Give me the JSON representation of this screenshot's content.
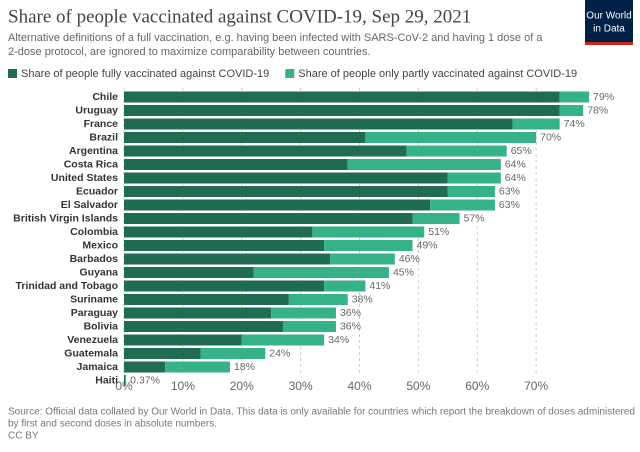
{
  "chart_data": {
    "type": "stacked-bar-horizontal",
    "title": "Share of people vaccinated against COVID-19, Sep 29, 2021",
    "subtitle": [
      "Alternative definitions of a full vaccination, e.g. having been infected with SARS-CoV-2 and having 1 dose of a",
      "2-dose protocol, are ignored to maximize comparability between countries."
    ],
    "logo": [
      "Our World",
      "in Data"
    ],
    "source": [
      "Source: Official data collated by Our World in Data. This data is only available for countries which report the breakdown of doses administered",
      "by first and second doses in absolute numbers.",
      "CC BY"
    ],
    "categories": [
      "Chile",
      "Uruguay",
      "France",
      "Brazil",
      "Argentina",
      "Costa Rica",
      "United States",
      "Ecuador",
      "El Salvador",
      "British Virgin Islands",
      "Colombia",
      "Mexico",
      "Barbados",
      "Guyana",
      "Trinidad and Tobago",
      "Suriname",
      "Paraguay",
      "Bolivia",
      "Venezuela",
      "Guatemala",
      "Jamaica",
      "Haiti"
    ],
    "series": [
      {
        "name": "Share of people fully vaccinated against COVID-19",
        "color": "#1f6b53",
        "values": [
          74,
          74,
          66,
          41,
          48,
          38,
          55,
          55,
          52,
          49,
          32,
          34,
          35,
          22,
          34,
          28,
          25,
          27,
          20,
          13,
          7,
          0.2
        ]
      },
      {
        "name": "Share of people only partly vaccinated against COVID-19",
        "color": "#35b287",
        "values": [
          5,
          4,
          8,
          29,
          17,
          26,
          9,
          8,
          11,
          8,
          19,
          15,
          11,
          23,
          7,
          10,
          11,
          9,
          14,
          11,
          11,
          0.17
        ]
      }
    ],
    "total_labels": [
      "79%",
      "78%",
      "74%",
      "70%",
      "65%",
      "64%",
      "64%",
      "63%",
      "63%",
      "57%",
      "51%",
      "49%",
      "46%",
      "45%",
      "41%",
      "38%",
      "36%",
      "36%",
      "34%",
      "24%",
      "18%",
      "0.37%"
    ],
    "xlim": [
      0,
      80
    ],
    "xticks": [
      {
        "value": 0,
        "label": "0%"
      },
      {
        "value": 10,
        "label": "10%"
      },
      {
        "value": 20,
        "label": "20%"
      },
      {
        "value": 30,
        "label": "30%"
      },
      {
        "value": 40,
        "label": "40%"
      },
      {
        "value": 50,
        "label": "50%"
      },
      {
        "value": 60,
        "label": "60%"
      },
      {
        "value": 70,
        "label": "70%"
      }
    ],
    "grid": true
  }
}
